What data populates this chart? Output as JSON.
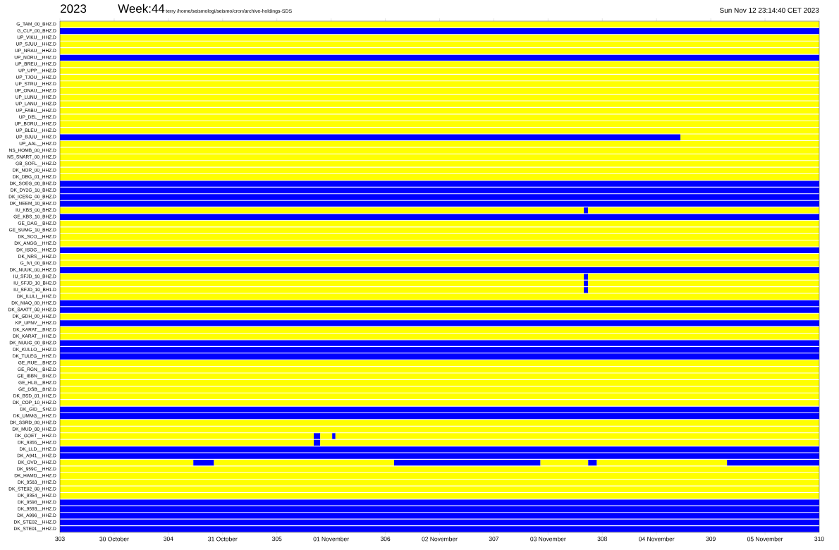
{
  "chart_data": {
    "type": "bar",
    "orientation": "horizontal",
    "title": "2023",
    "subtitle": "Week:44",
    "annotations": [
      "terry /home/seismologi/seismo/cron/archive-holdings-SDS",
      "Sun Nov 12 23:14:40 CET 2023"
    ],
    "categories": [
      "G_TAM_00_BHZ.D",
      "G_CLF_00_BHZ.D",
      "UP_VIKU__HHZ.D",
      "UP_SJUU__HHZ.D",
      "UP_NRAU__HHZ.D",
      "UP_NORU__HHZ.D",
      "UP_BREU__HHZ.D",
      "UP_UPP__HHZ.D",
      "UP_TJOU__HHZ.D",
      "UP_STRU__HHZ.D",
      "UP_ONAU__HHZ.D",
      "UP_LUNU__HHZ.D",
      "UP_LANU__HHZ.D",
      "UP_FABU__HHZ.D",
      "UP_DEL__HHZ.D",
      "UP_BORU__HHZ.D",
      "UP_BLEU__HHZ.D",
      "UP_BJUU__HHZ.D",
      "UP_AAL__HHZ.D",
      "NS_HOMB_00_HHZ.D",
      "NS_SNART_00_HHZ.D",
      "GB_SOFL__HHZ.D",
      "DK_NOR_00_HHZ.D",
      "DK_DBG_01_HHZ.D",
      "DK_SOEG_00_BHZ.D",
      "DK_DY2G_10_BHZ.D",
      "DK_ICESG_00_BHZ.D",
      "DK_NEEM_10_BHZ.D",
      "IU_KBS_00_BHZ.D",
      "GE_KBS_10_BHZ.D",
      "GE_DAG__BHZ.D",
      "GE_SUMG_10_BHZ.D",
      "DK_SCO__HHZ.D",
      "DK_ANGG__HHZ.D",
      "DK_ISOG__HHZ.D",
      "DK_NRS__HHZ.D",
      "G_IVI_00_BHZ.D",
      "DK_NUUK_00_HHZ.D",
      "IU_SFJD_10_BHZ.D",
      "IU_SFJD_10_BH2.D",
      "IU_SFJD_10_BH1.D",
      "DK_ILULI__HHZ.D",
      "DK_NIAQ_00_HHZ.D",
      "DK_SAATT_00_HHZ.D",
      "DK_GDH_00_HHZ.D",
      "KP_UPNV__HHZ.D",
      "DK_KARAT__BHZ.D",
      "DK_KARAT__HHZ.D",
      "DK_NUUG_00_BHZ.D",
      "DK_KULLO__HHZ.D",
      "DK_TULEG__HHZ.D",
      "GE_RUE__BHZ.D",
      "GE_RGN__BHZ.D",
      "GE_IBBN__BHZ.D",
      "GE_HLG__BHZ.D",
      "GE_DSB__BHZ.D",
      "DK_BSD_01_HHZ.D",
      "DK_COP_10_HHZ.D",
      "DK_GID__SHZ.D",
      "DK_UMMG__HHZ.D",
      "DK_SSRD_00_HHZ.D",
      "DK_MUD_00_HHZ.D",
      "DK_GOET__HHZ.D",
      "DK_9355__HHZ.D",
      "DK_LLD__HHZ.D",
      "DK_A941__HHZ.D",
      "DK_OVD__HHZ.D",
      "DK_959C__HHZ.D",
      "DK_HAMD__HHZ.D",
      "DK_9563__HHZ.D",
      "DK_STE02_00_HHZ.D",
      "DK_9354__HHZ.D",
      "DK_9598__HHZ.D",
      "DK_9593__HHZ.D",
      "DK_A996__HHZ.D",
      "DK_STE02__HHZ.D",
      "DK_STE01__HHZ.D"
    ],
    "xlim": [
      303,
      310
    ],
    "xticks": [
      303,
      {
        "value": 303.5,
        "label": "30 October"
      },
      304,
      {
        "value": 304.5,
        "label": "31 October"
      },
      305,
      {
        "value": 305.5,
        "label": "01 November"
      },
      306,
      {
        "value": 306.5,
        "label": "02 November"
      },
      307,
      {
        "value": 307.5,
        "label": "03 November"
      },
      308,
      {
        "value": 308.5,
        "label": "04 November"
      },
      309,
      {
        "value": 309.5,
        "label": "05 November"
      },
      310
    ],
    "series": [
      {
        "color": "#ffff00",
        "base": [
          303,
          null,
          303,
          303,
          303,
          null,
          303,
          303,
          303,
          303,
          303,
          303,
          303,
          303,
          303,
          303,
          303,
          308.72,
          303,
          303,
          303,
          303,
          303,
          303,
          null,
          null,
          null,
          null,
          303,
          null,
          303,
          303,
          303,
          303,
          null,
          303,
          303,
          null,
          303,
          303,
          303,
          303,
          null,
          null,
          303,
          null,
          303,
          303,
          null,
          null,
          null,
          303,
          303,
          303,
          303,
          303,
          303,
          303,
          null,
          null,
          303,
          303,
          303,
          303,
          null,
          null,
          303,
          303,
          303,
          303,
          303,
          303,
          null,
          null,
          null,
          null,
          null
        ],
        "values": [
          7,
          null,
          7,
          7,
          7,
          null,
          7,
          7,
          7,
          7,
          7,
          7,
          7,
          7,
          7,
          7,
          7,
          1.28,
          7,
          7,
          7,
          7,
          7,
          7,
          null,
          null,
          null,
          null,
          4.83,
          null,
          7,
          7,
          7,
          7,
          null,
          7,
          7,
          null,
          4.83,
          4.83,
          4.83,
          7,
          null,
          null,
          7,
          null,
          7,
          7,
          null,
          null,
          null,
          7,
          7,
          7,
          7,
          7,
          7,
          7,
          null,
          null,
          7,
          7,
          2.34,
          2.34,
          null,
          null,
          1.23,
          7,
          7,
          7,
          7,
          7,
          null,
          null,
          null,
          null,
          null
        ]
      },
      {
        "color": "#0000ff",
        "base": [
          null,
          303,
          null,
          null,
          null,
          303,
          null,
          null,
          null,
          null,
          null,
          null,
          null,
          null,
          null,
          null,
          null,
          303,
          null,
          null,
          null,
          null,
          null,
          null,
          303,
          303,
          303,
          303,
          307.83,
          303,
          null,
          null,
          null,
          null,
          303,
          null,
          null,
          303,
          307.83,
          307.83,
          307.83,
          null,
          303,
          303,
          null,
          303,
          null,
          null,
          303,
          303,
          303,
          null,
          null,
          null,
          null,
          null,
          null,
          null,
          303,
          303,
          null,
          null,
          305.34,
          305.34,
          303,
          303,
          304.23,
          null,
          null,
          null,
          null,
          null,
          303,
          303,
          303,
          303,
          303
        ],
        "values": [
          null,
          7,
          null,
          null,
          null,
          7,
          null,
          null,
          null,
          null,
          null,
          null,
          null,
          null,
          null,
          null,
          null,
          5.72,
          null,
          null,
          null,
          null,
          null,
          null,
          7,
          7,
          7,
          7,
          0.04,
          7,
          null,
          null,
          null,
          null,
          7,
          null,
          null,
          7,
          0.04,
          0.04,
          0.04,
          null,
          7,
          7,
          null,
          7,
          null,
          null,
          7,
          7,
          7,
          null,
          null,
          null,
          null,
          null,
          null,
          null,
          7,
          7,
          null,
          null,
          0.06,
          0.06,
          7,
          7,
          0.19,
          null,
          null,
          null,
          null,
          null,
          7,
          7,
          7,
          7,
          7
        ]
      },
      {
        "color": "#ffff00",
        "base": [
          null,
          null,
          null,
          null,
          null,
          null,
          null,
          null,
          null,
          null,
          null,
          null,
          null,
          null,
          null,
          null,
          null,
          null,
          null,
          null,
          null,
          null,
          null,
          null,
          null,
          null,
          null,
          null,
          307.87,
          null,
          null,
          null,
          null,
          null,
          null,
          null,
          null,
          null,
          307.87,
          307.87,
          307.87,
          null,
          null,
          null,
          null,
          null,
          null,
          null,
          null,
          null,
          null,
          null,
          null,
          null,
          null,
          null,
          null,
          null,
          null,
          null,
          null,
          null,
          305.4,
          305.4,
          null,
          null,
          304.42,
          null,
          null,
          null,
          null,
          null,
          null,
          null,
          null,
          null,
          null
        ],
        "values": [
          null,
          null,
          null,
          null,
          null,
          null,
          null,
          null,
          null,
          null,
          null,
          null,
          null,
          null,
          null,
          null,
          null,
          null,
          null,
          null,
          null,
          null,
          null,
          null,
          null,
          null,
          null,
          null,
          2.13,
          null,
          null,
          null,
          null,
          null,
          null,
          null,
          null,
          null,
          2.13,
          2.13,
          2.13,
          null,
          null,
          null,
          null,
          null,
          null,
          null,
          null,
          null,
          null,
          null,
          null,
          null,
          null,
          null,
          null,
          null,
          null,
          null,
          null,
          null,
          0.11,
          4.6,
          null,
          null,
          1.66,
          null,
          null,
          null,
          null,
          null,
          null,
          null,
          null,
          null,
          null
        ]
      },
      {
        "color": "#0000ff",
        "base": [
          null,
          null,
          null,
          null,
          null,
          null,
          null,
          null,
          null,
          null,
          null,
          null,
          null,
          null,
          null,
          null,
          null,
          null,
          null,
          null,
          null,
          null,
          null,
          null,
          null,
          null,
          null,
          null,
          null,
          null,
          null,
          null,
          null,
          null,
          null,
          null,
          null,
          null,
          null,
          null,
          null,
          null,
          null,
          null,
          null,
          null,
          null,
          null,
          null,
          null,
          null,
          null,
          null,
          null,
          null,
          null,
          null,
          null,
          null,
          null,
          null,
          null,
          305.51,
          null,
          null,
          null,
          306.08,
          null,
          null,
          null,
          null,
          null,
          null,
          null,
          null,
          null,
          null
        ],
        "values": [
          null,
          null,
          null,
          null,
          null,
          null,
          null,
          null,
          null,
          null,
          null,
          null,
          null,
          null,
          null,
          null,
          null,
          null,
          null,
          null,
          null,
          null,
          null,
          null,
          null,
          null,
          null,
          null,
          null,
          null,
          null,
          null,
          null,
          null,
          null,
          null,
          null,
          null,
          null,
          null,
          null,
          null,
          null,
          null,
          null,
          null,
          null,
          null,
          null,
          null,
          null,
          null,
          null,
          null,
          null,
          null,
          null,
          null,
          null,
          null,
          null,
          null,
          0.03,
          null,
          null,
          null,
          1.35,
          null,
          null,
          null,
          null,
          null,
          null,
          null,
          null,
          null,
          null
        ]
      },
      {
        "color": "#ffff00",
        "base": [
          null,
          null,
          null,
          null,
          null,
          null,
          null,
          null,
          null,
          null,
          null,
          null,
          null,
          null,
          null,
          null,
          null,
          null,
          null,
          null,
          null,
          null,
          null,
          null,
          null,
          null,
          null,
          null,
          null,
          null,
          null,
          null,
          null,
          null,
          null,
          null,
          null,
          null,
          null,
          null,
          null,
          null,
          null,
          null,
          null,
          null,
          null,
          null,
          null,
          null,
          null,
          null,
          null,
          null,
          null,
          null,
          null,
          null,
          null,
          null,
          null,
          null,
          305.54,
          null,
          null,
          null,
          307.43,
          null,
          null,
          null,
          null,
          null,
          null,
          null,
          null,
          null,
          null
        ],
        "values": [
          null,
          null,
          null,
          null,
          null,
          null,
          null,
          null,
          null,
          null,
          null,
          null,
          null,
          null,
          null,
          null,
          null,
          null,
          null,
          null,
          null,
          null,
          null,
          null,
          null,
          null,
          null,
          null,
          null,
          null,
          null,
          null,
          null,
          null,
          null,
          null,
          null,
          null,
          null,
          null,
          null,
          null,
          null,
          null,
          null,
          null,
          null,
          null,
          null,
          null,
          null,
          null,
          null,
          null,
          null,
          null,
          null,
          null,
          null,
          null,
          null,
          null,
          4.46,
          null,
          null,
          null,
          0.44,
          null,
          null,
          null,
          null,
          null,
          null,
          null,
          null,
          null,
          null
        ]
      },
      {
        "color": "#0000ff",
        "base": [
          null,
          null,
          null,
          null,
          null,
          null,
          null,
          null,
          null,
          null,
          null,
          null,
          null,
          null,
          null,
          null,
          null,
          null,
          null,
          null,
          null,
          null,
          null,
          null,
          null,
          null,
          null,
          null,
          null,
          null,
          null,
          null,
          null,
          null,
          null,
          null,
          null,
          null,
          null,
          null,
          null,
          null,
          null,
          null,
          null,
          null,
          null,
          null,
          null,
          null,
          null,
          null,
          null,
          null,
          null,
          null,
          null,
          null,
          null,
          null,
          null,
          null,
          null,
          null,
          null,
          null,
          307.87,
          null,
          null,
          null,
          null,
          null,
          null,
          null,
          null,
          null,
          null
        ],
        "values": [
          null,
          null,
          null,
          null,
          null,
          null,
          null,
          null,
          null,
          null,
          null,
          null,
          null,
          null,
          null,
          null,
          null,
          null,
          null,
          null,
          null,
          null,
          null,
          null,
          null,
          null,
          null,
          null,
          null,
          null,
          null,
          null,
          null,
          null,
          null,
          null,
          null,
          null,
          null,
          null,
          null,
          null,
          null,
          null,
          null,
          null,
          null,
          null,
          null,
          null,
          null,
          null,
          null,
          null,
          null,
          null,
          null,
          null,
          null,
          null,
          null,
          null,
          null,
          null,
          null,
          null,
          0.08,
          null,
          null,
          null,
          null,
          null,
          null,
          null,
          null,
          null,
          null
        ]
      },
      {
        "color": "#ffff00",
        "base": [
          null,
          null,
          null,
          null,
          null,
          null,
          null,
          null,
          null,
          null,
          null,
          null,
          null,
          null,
          null,
          null,
          null,
          null,
          null,
          null,
          null,
          null,
          null,
          null,
          null,
          null,
          null,
          null,
          null,
          null,
          null,
          null,
          null,
          null,
          null,
          null,
          null,
          null,
          null,
          null,
          null,
          null,
          null,
          null,
          null,
          null,
          null,
          null,
          null,
          null,
          null,
          null,
          null,
          null,
          null,
          null,
          null,
          null,
          null,
          null,
          null,
          null,
          null,
          null,
          null,
          null,
          307.95,
          null,
          null,
          null,
          null,
          null,
          null,
          null,
          null,
          null,
          null
        ],
        "values": [
          null,
          null,
          null,
          null,
          null,
          null,
          null,
          null,
          null,
          null,
          null,
          null,
          null,
          null,
          null,
          null,
          null,
          null,
          null,
          null,
          null,
          null,
          null,
          null,
          null,
          null,
          null,
          null,
          null,
          null,
          null,
          null,
          null,
          null,
          null,
          null,
          null,
          null,
          null,
          null,
          null,
          null,
          null,
          null,
          null,
          null,
          null,
          null,
          null,
          null,
          null,
          null,
          null,
          null,
          null,
          null,
          null,
          null,
          null,
          null,
          null,
          null,
          null,
          null,
          null,
          null,
          1.2,
          null,
          null,
          null,
          null,
          null,
          null,
          null,
          null,
          null,
          null
        ]
      },
      {
        "color": "#0000ff",
        "base": [
          null,
          null,
          null,
          null,
          null,
          null,
          null,
          null,
          null,
          null,
          null,
          null,
          null,
          null,
          null,
          null,
          null,
          null,
          null,
          null,
          null,
          null,
          null,
          null,
          null,
          null,
          null,
          null,
          null,
          null,
          null,
          null,
          null,
          null,
          null,
          null,
          null,
          null,
          null,
          null,
          null,
          null,
          null,
          null,
          null,
          null,
          null,
          null,
          null,
          null,
          null,
          null,
          null,
          null,
          null,
          null,
          null,
          null,
          null,
          null,
          null,
          null,
          null,
          null,
          null,
          null,
          309.15,
          null,
          null,
          null,
          null,
          null,
          null,
          null,
          null,
          null,
          null
        ],
        "values": [
          null,
          null,
          null,
          null,
          null,
          null,
          null,
          null,
          null,
          null,
          null,
          null,
          null,
          null,
          null,
          null,
          null,
          null,
          null,
          null,
          null,
          null,
          null,
          null,
          null,
          null,
          null,
          null,
          null,
          null,
          null,
          null,
          null,
          null,
          null,
          null,
          null,
          null,
          null,
          null,
          null,
          null,
          null,
          null,
          null,
          null,
          null,
          null,
          null,
          null,
          null,
          null,
          null,
          null,
          null,
          null,
          null,
          null,
          null,
          null,
          null,
          null,
          null,
          null,
          null,
          null,
          0.85,
          null,
          null,
          null,
          null,
          null,
          null,
          null,
          null,
          null,
          null
        ]
      }
    ]
  }
}
